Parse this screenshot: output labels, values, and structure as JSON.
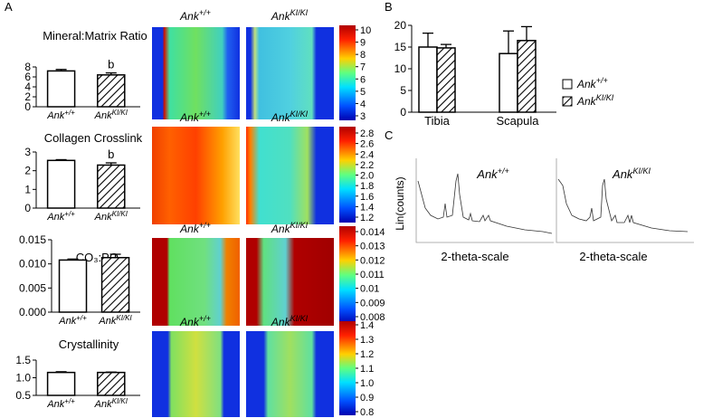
{
  "panel_labels": [
    "A",
    "B",
    "C"
  ],
  "chart_data": [
    {
      "type": "bar",
      "title": "Mineral:Matrix Ratio",
      "categories": [
        {
          "text": "Ank",
          "sup": "+/+"
        },
        {
          "text": "Ank",
          "sup": "KI/KI"
        }
      ],
      "values": [
        7.2,
        6.4
      ],
      "errors": [
        0.3,
        0.4
      ],
      "bar_fills": [
        "white",
        "hatched"
      ],
      "annotations": [
        null,
        "b"
      ],
      "ylim": [
        0,
        8
      ],
      "yticks": [
        0,
        2,
        4,
        6,
        8
      ]
    },
    {
      "type": "bar",
      "title": "Collagen Crosslink",
      "categories": [
        {
          "text": "Ank",
          "sup": "+/+"
        },
        {
          "text": "Ank",
          "sup": "KI/KI"
        }
      ],
      "values": [
        2.55,
        2.3
      ],
      "errors": [
        0.04,
        0.12
      ],
      "bar_fills": [
        "white",
        "hatched"
      ],
      "annotations": [
        null,
        "b"
      ],
      "ylim": [
        0,
        3
      ],
      "yticks": [
        0,
        1,
        2,
        3
      ]
    },
    {
      "type": "bar",
      "title": "CO₃:PO₄",
      "categories": [
        {
          "text": "Ank",
          "sup": "+/+"
        },
        {
          "text": "Ank",
          "sup": "KI/KI"
        }
      ],
      "values": [
        0.0108,
        0.0113
      ],
      "errors": [
        0.0002,
        0.0007
      ],
      "bar_fills": [
        "white",
        "hatched"
      ],
      "annotations": [
        null,
        null
      ],
      "ylim": [
        0,
        0.015
      ],
      "yticks": [
        {
          "value": 0,
          "label": "0.000"
        },
        0.005,
        {
          "value": 0.01,
          "label": "0.010"
        },
        0.015
      ]
    },
    {
      "type": "bar",
      "title": "Crystallinity",
      "categories": [
        {
          "text": "Ank",
          "sup": "+/+"
        },
        {
          "text": "Ank",
          "sup": "KI/KI"
        }
      ],
      "values": [
        1.15,
        1.15
      ],
      "errors": [
        0.02,
        0.01
      ],
      "bar_fills": [
        "white",
        "hatched"
      ],
      "annotations": [
        null,
        null
      ],
      "ylim": [
        0.5,
        1.5
      ],
      "yticks": [
        0.5,
        {
          "value": 1,
          "label": "1.0"
        },
        1.5
      ]
    },
    {
      "type": "grouped_bar",
      "categories": [
        "Tibia",
        "Scapula"
      ],
      "series": [
        {
          "name": {
            "text": "Ank",
            "sup": "+/+"
          },
          "fill": "white",
          "values": [
            15,
            13.5
          ],
          "errors": [
            3.2,
            5.2
          ]
        },
        {
          "name": {
            "text": "Ank",
            "sup": "KI/KI"
          },
          "fill": "hatched",
          "values": [
            14.8,
            16.5
          ],
          "errors": [
            0.8,
            3.2
          ]
        }
      ],
      "ylim": [
        0,
        20
      ],
      "yticks": [
        0,
        5,
        10,
        15,
        20
      ],
      "legend": "right"
    }
  ],
  "maps": {
    "column_labels": [
      {
        "text": "Ank",
        "sup": "+/+"
      },
      {
        "text": "Ank",
        "sup": "KI/KI"
      }
    ],
    "colorbars": [
      {
        "clim": [
          3,
          10
        ],
        "ticks": [
          10,
          9,
          8,
          7,
          6,
          5,
          4,
          3
        ]
      },
      {
        "clim": [
          1.2,
          2.8
        ],
        "ticks": [
          2.8,
          2.6,
          2.4,
          2.2,
          {
            "value": 2,
            "label": "2.0"
          },
          1.8,
          1.6,
          1.4,
          1.2
        ]
      },
      {
        "clim": [
          0.008,
          0.014
        ],
        "ticks": [
          0.014,
          0.013,
          0.012,
          0.011,
          0.01,
          0.009,
          0.008
        ]
      },
      {
        "clim": [
          0.8,
          1.4
        ],
        "ticks": [
          1.4,
          1.3,
          1.2,
          1.1,
          {
            "value": 1,
            "label": "1.0"
          },
          0.9,
          0.8
        ]
      }
    ]
  },
  "xrd": {
    "y_label": "Lin(counts)",
    "x_label": "2-theta-scale",
    "titles": [
      {
        "text": "Ank",
        "sup": "+/+"
      },
      {
        "text": "Ank",
        "sup": "KI/KI"
      }
    ]
  }
}
